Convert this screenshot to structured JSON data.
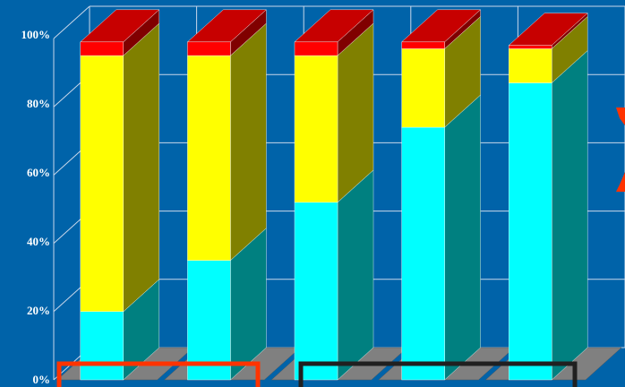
{
  "chart_data": {
    "type": "bar",
    "stacked": true,
    "percent_stacked": true,
    "three_d": true,
    "title": "",
    "xlabel": "",
    "ylabel": "",
    "ylim": [
      0,
      100
    ],
    "y_ticks": [
      "0%",
      "20%",
      "40%",
      "60%",
      "80%",
      "100%"
    ],
    "grid": true,
    "legend": "none",
    "categories": [
      "",
      "",
      "",
      "",
      ""
    ],
    "series": [
      {
        "values": [
          20,
          35,
          52,
          74,
          87
        ],
        "color": "#00ffff"
      },
      {
        "values": [
          75,
          60,
          43,
          23,
          10
        ],
        "color": "#ffff00"
      },
      {
        "values": [
          4,
          4,
          4,
          2,
          1
        ],
        "color": "#ff0000"
      }
    ],
    "colors": {
      "background": "#0063a9",
      "grid": "#c9d7ea",
      "floor": "#808080",
      "highlight_box_left": "#ff3300",
      "highlight_box_right": "#202020"
    }
  }
}
